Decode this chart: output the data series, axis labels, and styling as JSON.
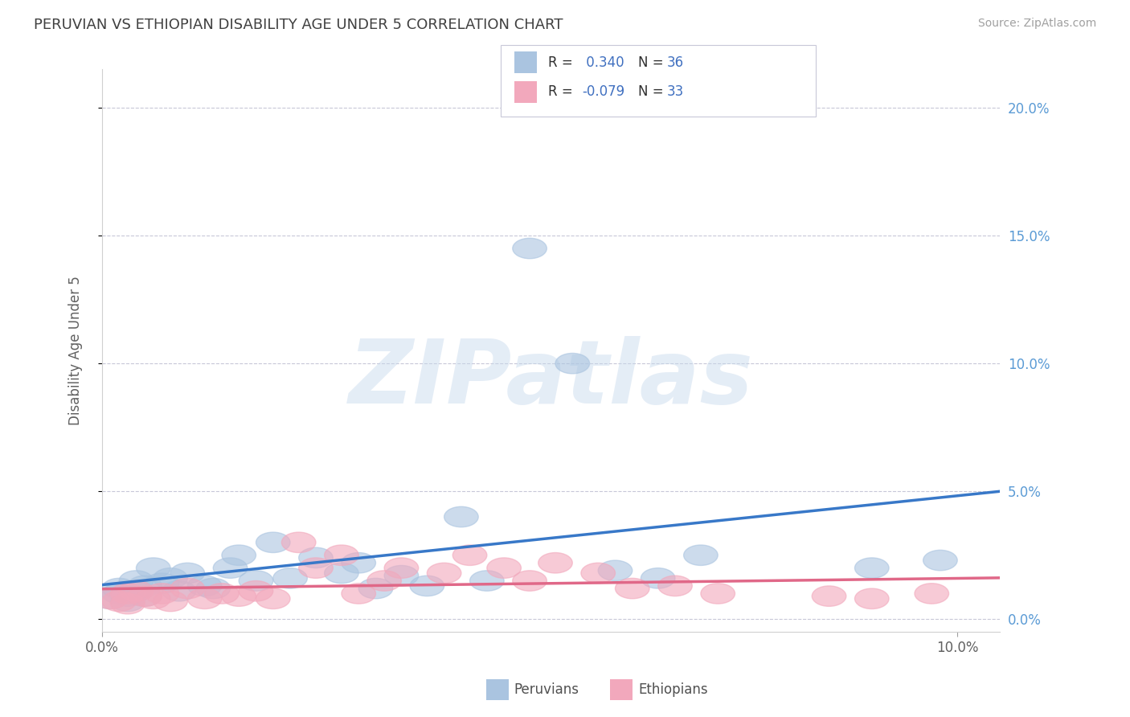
{
  "title": "PERUVIAN VS ETHIOPIAN DISABILITY AGE UNDER 5 CORRELATION CHART",
  "source": "Source: ZipAtlas.com",
  "ylabel": "Disability Age Under 5",
  "xlim": [
    0.0,
    0.105
  ],
  "ylim": [
    -0.005,
    0.215
  ],
  "yticks": [
    0.0,
    0.05,
    0.1,
    0.15,
    0.2
  ],
  "ytick_labels": [
    "0.0%",
    "5.0%",
    "10.0%",
    "15.0%",
    "20.0%"
  ],
  "peruvian_color": "#aac4e0",
  "ethiopian_color": "#f2a8bc",
  "peruvian_line_color": "#3878c8",
  "ethiopian_line_color": "#e06888",
  "R_peruvian": 0.34,
  "N_peruvian": 36,
  "R_ethiopian": -0.079,
  "N_ethiopian": 33,
  "peruvian_x": [
    0.001,
    0.002,
    0.002,
    0.003,
    0.003,
    0.004,
    0.004,
    0.005,
    0.005,
    0.006,
    0.007,
    0.008,
    0.009,
    0.01,
    0.012,
    0.013,
    0.015,
    0.016,
    0.018,
    0.02,
    0.022,
    0.025,
    0.028,
    0.03,
    0.032,
    0.035,
    0.038,
    0.042,
    0.045,
    0.05,
    0.055,
    0.06,
    0.065,
    0.07,
    0.09,
    0.098
  ],
  "peruvian_y": [
    0.008,
    0.01,
    0.012,
    0.007,
    0.009,
    0.015,
    0.011,
    0.013,
    0.009,
    0.02,
    0.014,
    0.016,
    0.011,
    0.018,
    0.013,
    0.012,
    0.02,
    0.025,
    0.015,
    0.03,
    0.016,
    0.024,
    0.018,
    0.022,
    0.012,
    0.017,
    0.013,
    0.04,
    0.015,
    0.145,
    0.1,
    0.019,
    0.016,
    0.025,
    0.02,
    0.023
  ],
  "ethiopian_x": [
    0.001,
    0.002,
    0.003,
    0.003,
    0.004,
    0.005,
    0.006,
    0.007,
    0.008,
    0.01,
    0.012,
    0.014,
    0.016,
    0.018,
    0.02,
    0.023,
    0.025,
    0.028,
    0.03,
    0.033,
    0.035,
    0.04,
    0.043,
    0.047,
    0.05,
    0.053,
    0.058,
    0.062,
    0.067,
    0.072,
    0.085,
    0.09,
    0.097
  ],
  "ethiopian_y": [
    0.008,
    0.007,
    0.01,
    0.006,
    0.011,
    0.009,
    0.008,
    0.01,
    0.007,
    0.012,
    0.008,
    0.01,
    0.009,
    0.011,
    0.008,
    0.03,
    0.02,
    0.025,
    0.01,
    0.015,
    0.02,
    0.018,
    0.025,
    0.02,
    0.015,
    0.022,
    0.018,
    0.012,
    0.013,
    0.01,
    0.009,
    0.008,
    0.01
  ],
  "watermark": "ZIPatlas",
  "background_color": "#ffffff",
  "grid_color": "#c8c8d8",
  "title_color": "#404040",
  "right_axis_color": "#5b9bd5",
  "legend_text_color": "#4070c0"
}
